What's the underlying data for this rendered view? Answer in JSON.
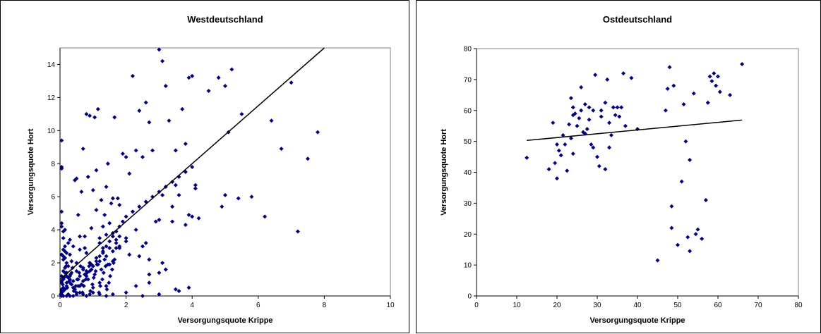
{
  "chart_data": [
    {
      "type": "scatter",
      "title": "Westdeutschland",
      "xlabel": "Versorgungsquote Krippe",
      "ylabel": "Versorgungsquote Hort",
      "xlim": [
        0,
        10
      ],
      "ylim": [
        0,
        15
      ],
      "xticks": [
        0,
        2,
        4,
        6,
        8,
        10
      ],
      "yticks": [
        0,
        2,
        4,
        6,
        8,
        10,
        12,
        14
      ],
      "grid": false,
      "legend": "none",
      "marker_color": "#00007f",
      "trendline": {
        "x": [
          0,
          8
        ],
        "y": [
          1.0,
          15.0
        ]
      },
      "series": [
        {
          "x": [
            0.05,
            0.05,
            0.05,
            0.05,
            0.05,
            0.05,
            0.1,
            0.1,
            0.1,
            0.1,
            0.15,
            0.15,
            0.2,
            0.2,
            0.2,
            0.25,
            0.25,
            0.3,
            0.3,
            0.35,
            0.4,
            0.45,
            0.5,
            0.55,
            0.6,
            0.65,
            0.7,
            0.75,
            0.8,
            0.85,
            0.9,
            0.95,
            1.0,
            1.05,
            1.1,
            1.15,
            1.2,
            1.25,
            1.3,
            1.35,
            1.4,
            1.45,
            1.5,
            1.55,
            1.6,
            1.65,
            1.7,
            1.75,
            1.8,
            1.9,
            2.0,
            2.1,
            2.2,
            2.3,
            2.4,
            2.5,
            2.6,
            2.7,
            2.8,
            2.9,
            3.0,
            3.1,
            3.2,
            3.3,
            3.4,
            3.5,
            3.6,
            3.7,
            3.8,
            3.9,
            4.0,
            4.2,
            4.5,
            4.8,
            5.0,
            5.2,
            5.5,
            6.2,
            7.2,
            0.05,
            0.1,
            0.2,
            0.3,
            0.5,
            0.7,
            0.9,
            1.1,
            1.3,
            1.5,
            1.7,
            0.1,
            0.2,
            0.4,
            0.6,
            0.8,
            1.0,
            1.2,
            1.4,
            1.6,
            1.8,
            2.0,
            0.15,
            0.35,
            0.55,
            0.75,
            0.95,
            1.15,
            1.35,
            0.25,
            0.45,
            0.65,
            0.85,
            1.05,
            1.25,
            1.45,
            1.65,
            0.05,
            0.1,
            0.15,
            0.2,
            0.25,
            0.3,
            0.4,
            0.5,
            0.6,
            0.7,
            0.8,
            0.9,
            1.0,
            1.1,
            1.2,
            1.3,
            1.4,
            1.5,
            1.6,
            1.7,
            1.8,
            1.9,
            2.0,
            2.2,
            2.4,
            2.6,
            2.8,
            3.0,
            3.2,
            3.4,
            3.6,
            3.8,
            4.0,
            0.05,
            0.15,
            0.35,
            0.55,
            0.75,
            0.95,
            1.2,
            1.4,
            1.8,
            2.1,
            2.3,
            2.5,
            2.7,
            3.1,
            3.4,
            3.9,
            0.3,
            0.6,
            0.9,
            1.3,
            1.6,
            2.2,
            2.6,
            3.0,
            3.5,
            4.1,
            0.1,
            0.7,
            1.0,
            1.5,
            1.1,
            1.6,
            1.8,
            2.0,
            2.4,
            2.7,
            3.0,
            3.2,
            3.5,
            3.9,
            4.0,
            0.02,
            0.05,
            0.08,
            0.12,
            0.15,
            0.18,
            0.22,
            0.28,
            0.32,
            0.38,
            0.42,
            0.48,
            0.52,
            0.58,
            0.62,
            0.68,
            0.72,
            0.78,
            0.82,
            0.88,
            0.92,
            0.98,
            1.02,
            1.08,
            1.12,
            1.18,
            1.22,
            1.28,
            1.32,
            1.38,
            1.42,
            1.48,
            1.52,
            1.58,
            1.62,
            0.05,
            0.1,
            0.2,
            0.3,
            0.4,
            0.5,
            0.6,
            0.7,
            0.8,
            0.9,
            1.0,
            1.2,
            1.4,
            1.6,
            2.0,
            2.5,
            3.0,
            3.6,
            0.05,
            0.1,
            0.15,
            0.5,
            0.8,
            1.2,
            1.4,
            1.7,
            2.3,
            2.7,
            3.1,
            3.8,
            4.1,
            4.9,
            5.0,
            5.1,
            5.8,
            6.4,
            6.7,
            7.0,
            7.5,
            7.8,
            5.4,
            0.05,
            0.05,
            0.05,
            0.05
          ],
          "y": [
            9.4,
            7.8,
            7.7,
            5.1,
            4.4,
            4.2,
            3.9,
            3.5,
            2.2,
            1.5,
            4.0,
            3.0,
            2.6,
            2.0,
            1.2,
            3.2,
            1.8,
            2.5,
            1.0,
            2.1,
            3.0,
            7.0,
            7.1,
            4.9,
            2.8,
            6.3,
            8.9,
            3.6,
            11.0,
            7.2,
            10.9,
            4.1,
            6.4,
            10.8,
            7.6,
            11.3,
            3.2,
            5.8,
            2.9,
            4.9,
            6.6,
            8.0,
            4.4,
            5.6,
            5.9,
            10.8,
            3.4,
            5.9,
            5.5,
            8.6,
            8.4,
            7.4,
            13.3,
            8.8,
            11.2,
            8.4,
            11.7,
            10.5,
            8.8,
            4.5,
            14.9,
            14.2,
            12.7,
            10.6,
            5.4,
            8.8,
            6.1,
            11.3,
            9.2,
            13.2,
            13.3,
            4.7,
            12.4,
            13.2,
            12.7,
            13.7,
            11.0,
            4.8,
            3.9,
            0.2,
            0.5,
            0.8,
            1.2,
            1.5,
            1.7,
            2.0,
            2.3,
            2.6,
            2.9,
            3.2,
            0.3,
            0.6,
            0.9,
            1.2,
            1.5,
            1.8,
            2.1,
            2.4,
            2.7,
            3.0,
            3.3,
            0.4,
            0.7,
            1.0,
            1.3,
            1.6,
            1.9,
            2.2,
            0.1,
            0.4,
            0.7,
            1.0,
            1.3,
            1.6,
            1.9,
            2.2,
            2.5,
            2.8,
            1.7,
            1.4,
            1.1,
            0.8,
            0.5,
            0.2,
            0.6,
            0.9,
            1.2,
            1.5,
            1.8,
            2.1,
            2.4,
            2.7,
            3.0,
            3.3,
            3.6,
            3.9,
            4.2,
            4.5,
            4.8,
            5.1,
            5.4,
            5.7,
            6.0,
            6.3,
            6.6,
            6.9,
            7.2,
            7.5,
            7.8,
            0.9,
            2.3,
            1.4,
            0.6,
            2.9,
            1.9,
            0.8,
            0.6,
            3.6,
            2.5,
            4.0,
            3.0,
            2.2,
            6.1,
            4.5,
            4.9,
            3.4,
            3.6,
            2.0,
            4.2,
            3.8,
            5.1,
            3.2,
            4.6,
            6.7,
            6.5,
            1.0,
            1.6,
            0.5,
            1.9,
            5.2,
            2.1,
            2.9,
            3.5,
            2.4,
            0.8,
            1.4,
            1.6,
            0.4,
            0.5,
            4.8,
            0.1,
            0.3,
            0.7,
            1.1,
            1.4,
            1.8,
            0.5,
            0.9,
            1.3,
            1.7,
            0.3,
            0.6,
            1.0,
            1.4,
            1.8,
            0.2,
            0.6,
            1.0,
            1.4,
            1.8,
            0.3,
            0.7,
            1.1,
            1.5,
            1.9,
            0.2,
            0.6,
            1.0,
            1.4,
            1.8,
            0.4,
            0.8,
            1.2,
            1.6,
            2.0,
            0.0,
            0.0,
            0.0,
            0.0,
            0.0,
            0.1,
            0.2,
            0.1,
            0.0,
            0.1,
            0.2,
            0.1,
            0.0,
            0.1,
            0.2,
            0.0,
            0.1,
            0.3,
            2.5,
            2.4,
            2.7,
            2.0,
            2.6,
            3.5,
            3.7,
            2.9,
            0.6,
            1.3,
            2.0,
            4.3,
            6.7,
            5.4,
            6.1,
            9.9,
            6.0,
            10.6,
            8.9,
            12.9,
            8.3,
            9.9,
            5.9,
            0.1,
            0.4,
            0.8,
            1.2
          ]
        }
      ]
    },
    {
      "type": "scatter",
      "title": "Ostdeutschland",
      "xlabel": "Versorgungsquote Krippe",
      "ylabel": "Versorgungsquote Hort",
      "xlim": [
        0,
        80
      ],
      "ylim": [
        0,
        80
      ],
      "xticks": [
        0,
        10,
        20,
        30,
        40,
        50,
        60,
        70,
        80
      ],
      "yticks": [
        0,
        10,
        20,
        30,
        40,
        50,
        60,
        70,
        80
      ],
      "grid": false,
      "legend": "none",
      "marker_color": "#00007f",
      "trendline": {
        "x": [
          12.5,
          66
        ],
        "y": [
          50.3,
          56.9
        ]
      },
      "series": [
        {
          "x": [
            12.5,
            18,
            19,
            19.5,
            20,
            20,
            20.5,
            21,
            21.5,
            22,
            22.5,
            23,
            23.5,
            23.5,
            24,
            24,
            24.5,
            25,
            25.5,
            26,
            26.5,
            27,
            27.5,
            28,
            28,
            28.5,
            29,
            29.5,
            30,
            30.5,
            31,
            32,
            32,
            32.5,
            33,
            33.5,
            34,
            34.5,
            35,
            35.5,
            36,
            36.5,
            37,
            38.5,
            40,
            45,
            47,
            47.5,
            48,
            48.5,
            48.5,
            49,
            50,
            51,
            51.5,
            52,
            52.5,
            53,
            53,
            54,
            54.5,
            55,
            56,
            57,
            57.5,
            58,
            58.5,
            59,
            59.5,
            60,
            60.5,
            63,
            66,
            24,
            26,
            27,
            29,
            31,
            33
          ],
          "y": [
            44.7,
            41,
            56,
            43,
            38,
            49,
            47,
            45.5,
            52,
            49,
            40.5,
            55.5,
            64,
            51,
            46,
            61,
            59,
            55,
            57.5,
            67.5,
            53,
            52.5,
            54,
            57,
            61,
            49,
            48,
            71.5,
            45,
            42,
            60,
            41,
            62.5,
            70,
            56,
            52,
            61,
            58.5,
            61,
            58,
            61,
            72,
            55,
            70.5,
            54,
            11.5,
            60,
            67,
            74,
            29,
            22,
            68,
            16.5,
            37,
            62,
            50,
            19,
            44,
            14.5,
            65.5,
            20,
            21.5,
            18.5,
            31,
            62.5,
            71,
            69.5,
            72,
            68,
            71,
            66,
            65,
            75,
            58.5,
            60,
            62,
            60,
            58,
            48
          ]
        }
      ]
    }
  ]
}
